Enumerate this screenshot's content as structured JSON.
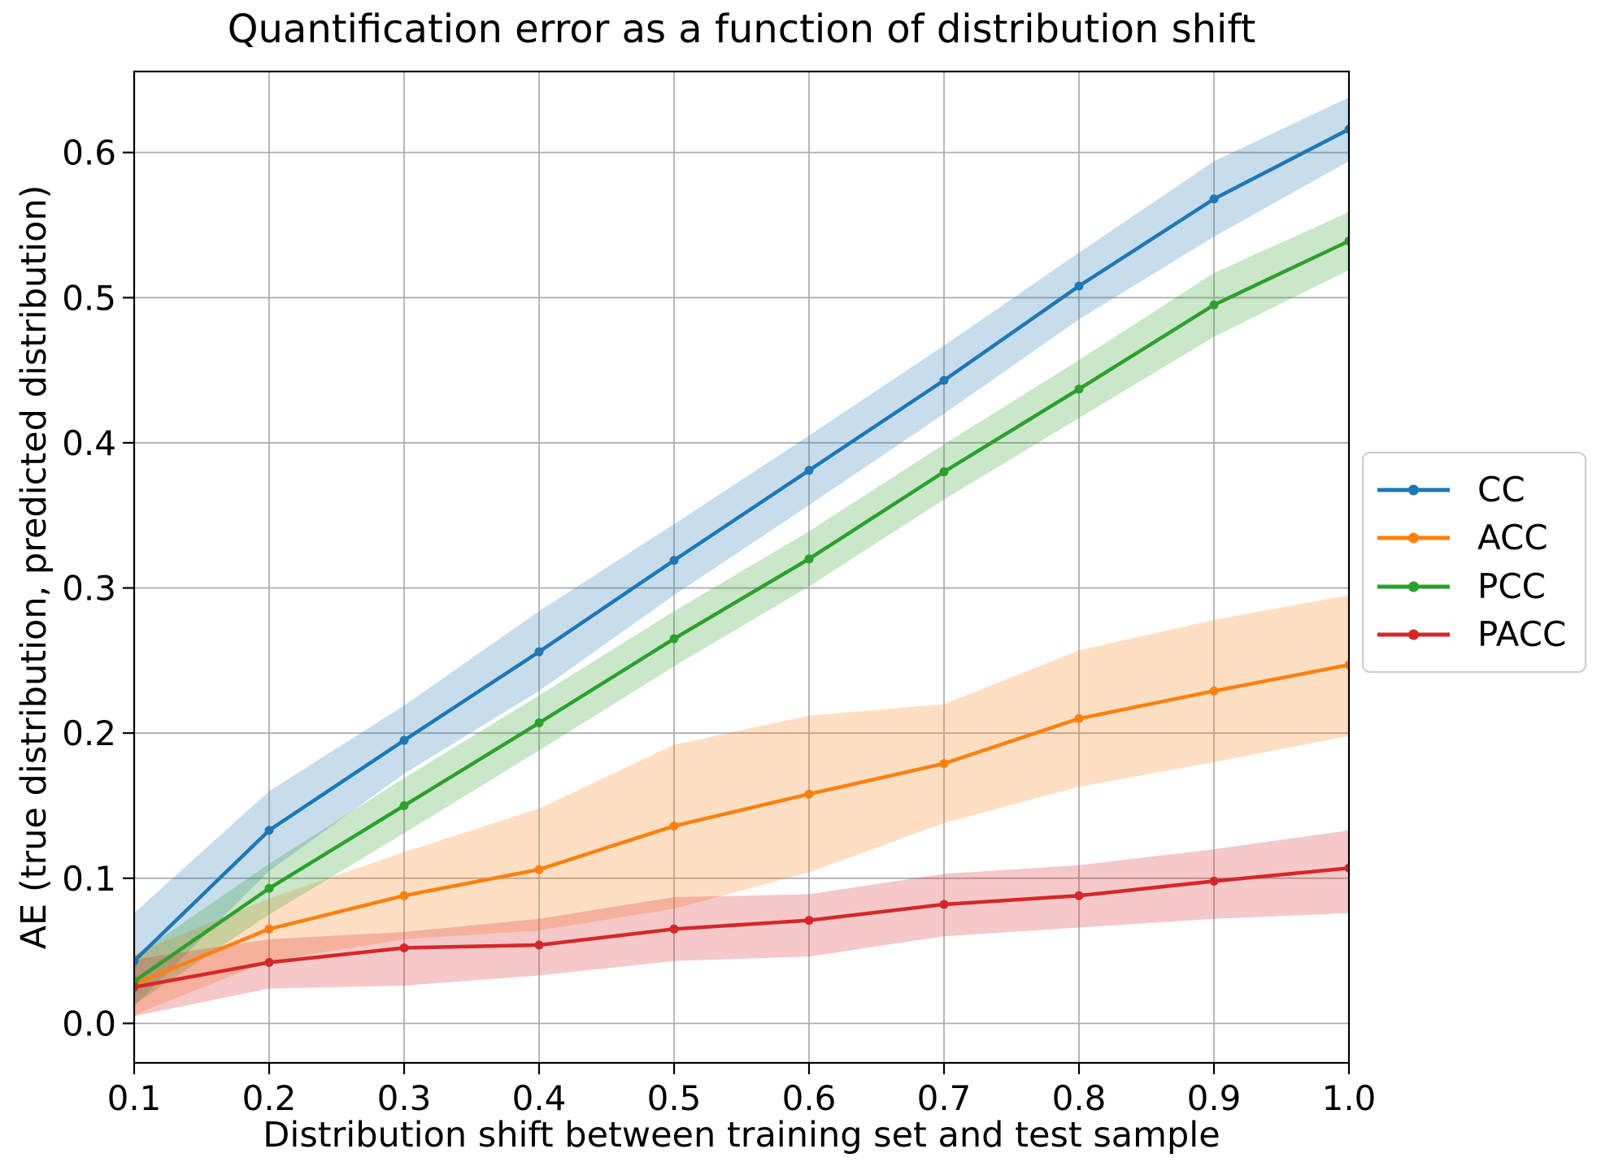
{
  "chart_data": {
    "type": "line",
    "title": "Quantification error as a function of distribution shift",
    "xlabel": "Distribution shift between training set and test sample",
    "ylabel": "AE (true distribution, predicted distribution)",
    "x": [
      0.1,
      0.2,
      0.3,
      0.4,
      0.5,
      0.6,
      0.7,
      0.8,
      0.9,
      1.0
    ],
    "xtick_labels": [
      "0.1",
      "0.2",
      "0.3",
      "0.4",
      "0.5",
      "0.6",
      "0.7",
      "0.8",
      "0.9",
      "1.0"
    ],
    "ytick_values": [
      0.0,
      0.1,
      0.2,
      0.3,
      0.4,
      0.5,
      0.6
    ],
    "ytick_labels": [
      "0.0",
      "0.1",
      "0.2",
      "0.3",
      "0.4",
      "0.5",
      "0.6"
    ],
    "xlim": [
      0.1,
      1.0
    ],
    "ylim": [
      -0.0272,
      0.6558
    ],
    "grid": true,
    "grid_color": "#b0b0b0",
    "axis_color": "#000000",
    "background": "#ffffff",
    "band_opacity": 0.25,
    "legend_position": "right-outside",
    "series": [
      {
        "name": "CC",
        "color": "#1f77b4",
        "values": [
          0.043,
          0.133,
          0.195,
          0.256,
          0.319,
          0.381,
          0.443,
          0.508,
          0.568,
          0.616
        ],
        "band_lo": [
          0.012,
          0.105,
          0.172,
          0.229,
          0.295,
          0.357,
          0.42,
          0.485,
          0.542,
          0.594
        ],
        "band_hi": [
          0.076,
          0.16,
          0.219,
          0.284,
          0.344,
          0.405,
          0.467,
          0.531,
          0.594,
          0.638
        ]
      },
      {
        "name": "ACC",
        "color": "#ff7f0e",
        "values": [
          0.027,
          0.065,
          0.088,
          0.106,
          0.136,
          0.158,
          0.179,
          0.21,
          0.229,
          0.247
        ],
        "band_lo": [
          0.006,
          0.043,
          0.058,
          0.064,
          0.079,
          0.104,
          0.138,
          0.163,
          0.18,
          0.198
        ],
        "band_hi": [
          0.048,
          0.086,
          0.118,
          0.148,
          0.192,
          0.212,
          0.22,
          0.257,
          0.278,
          0.295
        ]
      },
      {
        "name": "PCC",
        "color": "#2ca02c",
        "values": [
          0.029,
          0.093,
          0.15,
          0.207,
          0.265,
          0.32,
          0.38,
          0.437,
          0.495,
          0.539
        ],
        "band_lo": [
          0.013,
          0.075,
          0.131,
          0.188,
          0.246,
          0.301,
          0.361,
          0.417,
          0.473,
          0.519
        ],
        "band_hi": [
          0.046,
          0.11,
          0.169,
          0.226,
          0.284,
          0.339,
          0.399,
          0.457,
          0.517,
          0.559
        ]
      },
      {
        "name": "PACC",
        "color": "#d62728",
        "values": [
          0.025,
          0.042,
          0.052,
          0.054,
          0.065,
          0.071,
          0.082,
          0.088,
          0.098,
          0.107
        ],
        "band_lo": [
          0.005,
          0.024,
          0.026,
          0.033,
          0.043,
          0.046,
          0.06,
          0.066,
          0.072,
          0.076
        ],
        "band_hi": [
          0.044,
          0.058,
          0.063,
          0.072,
          0.087,
          0.089,
          0.103,
          0.109,
          0.12,
          0.133
        ]
      }
    ]
  }
}
